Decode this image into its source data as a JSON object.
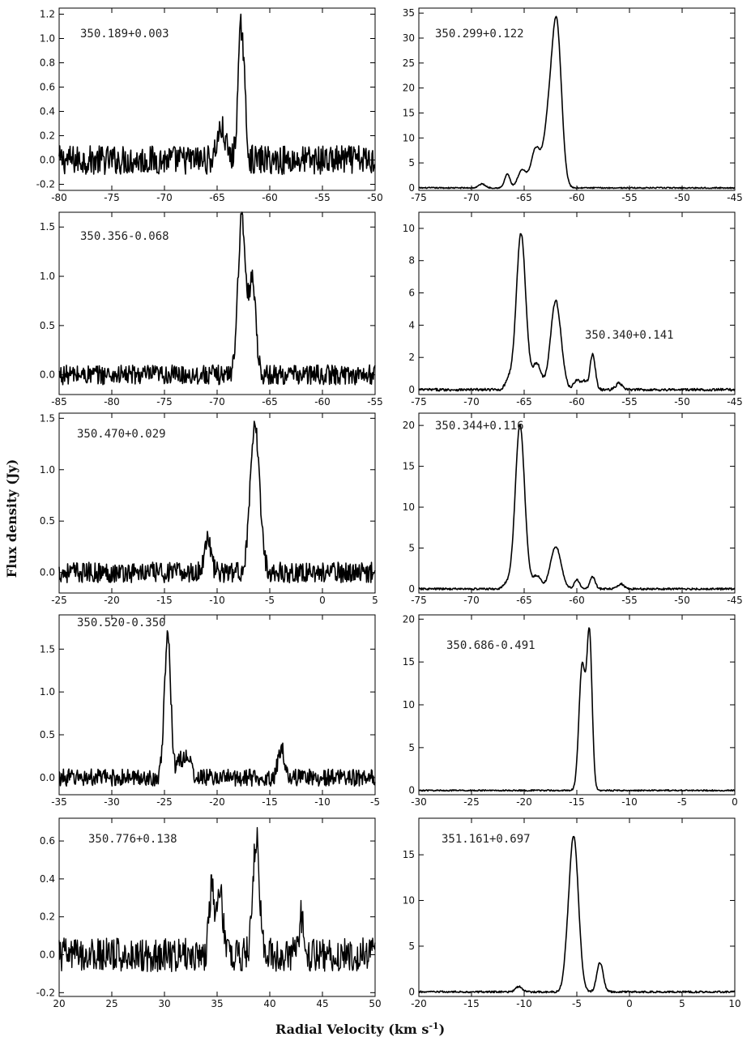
{
  "figure": {
    "xlabel": "Radial Velocity (km s",
    "xlabel_sup": "-1",
    "xlabel_close": ")",
    "ylabel": "Flux density (Jy)"
  },
  "chart_data": [
    {
      "type": "line",
      "title": "350.189+0.003",
      "xlim": [
        -80,
        -50
      ],
      "ylim": [
        -0.25,
        1.25
      ],
      "xticks": [
        -80,
        -75,
        -70,
        -65,
        -60,
        -55,
        -50
      ],
      "yticks": [
        -0.2,
        0,
        0.2,
        0.4,
        0.6,
        0.8,
        1.0,
        1.2
      ],
      "ytick_labels": [
        "-0.2",
        "0.0",
        "0.2",
        "0.4",
        "0.6",
        "0.8",
        "1.0",
        "1.2"
      ],
      "noise": 0.12,
      "baseline": 0,
      "lw": 1.6,
      "peaks": [
        {
          "x": -62.7,
          "y": 1.1,
          "w": 0.3
        },
        {
          "x": -64.6,
          "y": 0.25,
          "w": 0.4
        }
      ],
      "label_pos": "left"
    },
    {
      "type": "line",
      "title": "350.299+0.122",
      "xlim": [
        -75,
        -45
      ],
      "ylim": [
        -0.5,
        36
      ],
      "xticks": [
        -75,
        -70,
        -65,
        -60,
        -55,
        -50,
        -45
      ],
      "yticks": [
        0,
        5,
        10,
        15,
        20,
        25,
        30,
        35
      ],
      "noise": 0.12,
      "baseline": 0,
      "lw": 1.6,
      "peaks": [
        {
          "x": -61.9,
          "y": 31.5,
          "w": 0.45
        },
        {
          "x": -62.7,
          "y": 12,
          "w": 0.45
        },
        {
          "x": -63.9,
          "y": 7.8,
          "w": 0.45
        },
        {
          "x": -65.2,
          "y": 3.5,
          "w": 0.4
        },
        {
          "x": -66.6,
          "y": 2.8,
          "w": 0.25
        },
        {
          "x": -69,
          "y": 0.8,
          "w": 0.3
        }
      ],
      "label_pos": "left"
    },
    {
      "type": "line",
      "title": "350.356-0.068",
      "xlim": [
        -85,
        -55
      ],
      "ylim": [
        -0.2,
        1.65
      ],
      "xticks": [
        -85,
        -80,
        -75,
        -70,
        -65,
        -60,
        -55
      ],
      "yticks": [
        0,
        0.5,
        1.0,
        1.5
      ],
      "ytick_labels": [
        "0.0",
        "0.5",
        "1.0",
        "1.5"
      ],
      "noise": 0.1,
      "baseline": 0,
      "lw": 1.6,
      "peaks": [
        {
          "x": -67.7,
          "y": 1.4,
          "w": 0.35
        },
        {
          "x": -66.6,
          "y": 0.75,
          "w": 0.3
        },
        {
          "x": -67.1,
          "y": 0.35,
          "w": 0.5
        }
      ],
      "label_pos": "left"
    },
    {
      "type": "line",
      "title": "350.340+0.141",
      "xlim": [
        -75,
        -45
      ],
      "ylim": [
        -0.3,
        11
      ],
      "xticks": [
        -75,
        -70,
        -65,
        -60,
        -55,
        -50,
        -45
      ],
      "yticks": [
        0,
        2,
        4,
        6,
        8,
        10
      ],
      "noise": 0.08,
      "baseline": 0,
      "lw": 1.6,
      "peaks": [
        {
          "x": -65.3,
          "y": 9.7,
          "w": 0.45
        },
        {
          "x": -62,
          "y": 5.5,
          "w": 0.5
        },
        {
          "x": -63.8,
          "y": 1.6,
          "w": 0.4
        },
        {
          "x": -58.5,
          "y": 2.2,
          "w": 0.25
        },
        {
          "x": -66.5,
          "y": 0.6,
          "w": 0.3
        },
        {
          "x": -60,
          "y": 0.6,
          "w": 0.3
        },
        {
          "x": -59.3,
          "y": 0.5,
          "w": 0.25
        },
        {
          "x": -56,
          "y": 0.4,
          "w": 0.3
        }
      ],
      "label_pos": "right"
    },
    {
      "type": "line",
      "title": "350.470+0.029",
      "xlim": [
        -25,
        5
      ],
      "ylim": [
        -0.2,
        1.55
      ],
      "xticks": [
        -25,
        -20,
        -15,
        -10,
        -5,
        0,
        5
      ],
      "yticks": [
        0,
        0.5,
        1.0,
        1.5
      ],
      "ytick_labels": [
        "0.0",
        "0.5",
        "1.0",
        "1.5"
      ],
      "noise": 0.1,
      "baseline": 0,
      "lw": 1.6,
      "peaks": [
        {
          "x": -6.4,
          "y": 1.4,
          "w": 0.45
        },
        {
          "x": -10.9,
          "y": 0.35,
          "w": 0.3
        }
      ],
      "label_pos": "left"
    },
    {
      "type": "line",
      "title": "350.344+0.116",
      "xlim": [
        -75,
        -45
      ],
      "ylim": [
        -0.5,
        21.5
      ],
      "xticks": [
        -75,
        -70,
        -65,
        -60,
        -55,
        -50,
        -45
      ],
      "yticks": [
        0,
        5,
        10,
        15,
        20
      ],
      "noise": 0.12,
      "baseline": 0,
      "lw": 1.6,
      "peaks": [
        {
          "x": -65.4,
          "y": 20,
          "w": 0.45
        },
        {
          "x": -62,
          "y": 5.2,
          "w": 0.5
        },
        {
          "x": -63.8,
          "y": 1.6,
          "w": 0.4
        },
        {
          "x": -58.5,
          "y": 1.5,
          "w": 0.25
        },
        {
          "x": -60,
          "y": 1.1,
          "w": 0.25
        },
        {
          "x": -55.8,
          "y": 0.6,
          "w": 0.3
        },
        {
          "x": -66.7,
          "y": 0.6,
          "w": 0.3
        }
      ],
      "label_pos": "left"
    },
    {
      "type": "line",
      "title": "350.520-0.350",
      "xlim": [
        -35,
        -5
      ],
      "ylim": [
        -0.2,
        1.9
      ],
      "xticks": [
        -35,
        -30,
        -25,
        -20,
        -15,
        -10,
        -5
      ],
      "yticks": [
        0,
        0.5,
        1.0,
        1.5
      ],
      "ytick_labels": [
        "0.0",
        "0.5",
        "1.0",
        "1.5"
      ],
      "noise": 0.1,
      "baseline": 0,
      "lw": 1.6,
      "peaks": [
        {
          "x": -24.7,
          "y": 1.65,
          "w": 0.3
        },
        {
          "x": -13.9,
          "y": 0.35,
          "w": 0.3
        },
        {
          "x": -22.8,
          "y": 0.25,
          "w": 0.3
        },
        {
          "x": -23.5,
          "y": 0.2,
          "w": 0.3
        }
      ],
      "label_pos": "left"
    },
    {
      "type": "line",
      "title": "350.686-0.491",
      "xlim": [
        -30,
        0
      ],
      "ylim": [
        -0.5,
        20.5
      ],
      "xticks": [
        -30,
        -25,
        -20,
        -15,
        -10,
        -5,
        0
      ],
      "yticks": [
        0,
        5,
        10,
        15,
        20
      ],
      "noise": 0.08,
      "baseline": 0,
      "lw": 1.6,
      "peaks": [
        {
          "x": -14.5,
          "y": 14.5,
          "w": 0.3
        },
        {
          "x": -13.8,
          "y": 18,
          "w": 0.25
        }
      ],
      "label_pos": "left"
    },
    {
      "type": "line",
      "title": "350.776+0.138",
      "xlim": [
        20,
        50
      ],
      "ylim": [
        -0.22,
        0.72
      ],
      "xticks": [
        20,
        25,
        30,
        35,
        40,
        45,
        50
      ],
      "yticks": [
        -0.2,
        0,
        0.2,
        0.4,
        0.6
      ],
      "ytick_labels": [
        "-0.2",
        "0.0",
        "0.2",
        "0.4",
        "0.6"
      ],
      "noise": 0.09,
      "baseline": 0,
      "lw": 1.4,
      "peaks": [
        {
          "x": 38.7,
          "y": 0.62,
          "w": 0.3
        },
        {
          "x": 34.5,
          "y": 0.35,
          "w": 0.25
        },
        {
          "x": 35.3,
          "y": 0.3,
          "w": 0.3
        },
        {
          "x": 43,
          "y": 0.2,
          "w": 0.2
        }
      ],
      "label_pos": "left"
    },
    {
      "type": "line",
      "title": "351.161+0.697",
      "xlim": [
        -20,
        10
      ],
      "ylim": [
        -0.5,
        19
      ],
      "xticks": [
        -20,
        -15,
        -10,
        -5,
        0,
        5,
        10
      ],
      "yticks": [
        0,
        5,
        10,
        15
      ],
      "noise": 0.1,
      "baseline": 0,
      "lw": 1.6,
      "peaks": [
        {
          "x": -5.3,
          "y": 17,
          "w": 0.45
        },
        {
          "x": -2.8,
          "y": 3.2,
          "w": 0.3
        },
        {
          "x": -6,
          "y": 1.2,
          "w": 0.3
        },
        {
          "x": -10.5,
          "y": 0.6,
          "w": 0.3
        }
      ],
      "label_pos": "left"
    }
  ]
}
